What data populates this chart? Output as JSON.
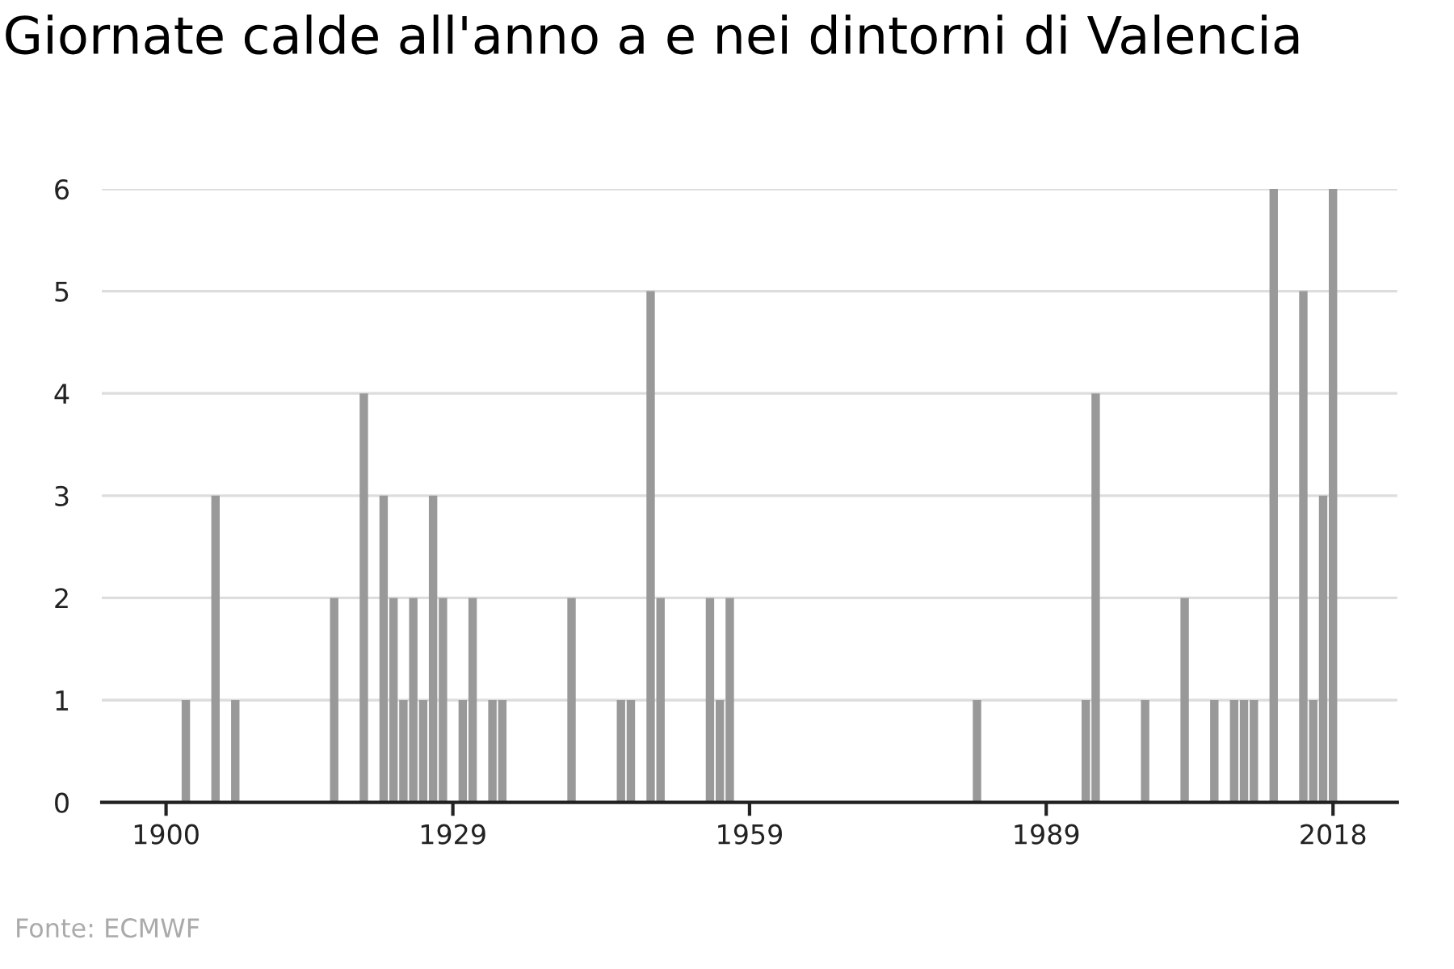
{
  "chart_data": {
    "type": "bar",
    "title": "Giornate calde all'anno a e nei dintorni di Valencia",
    "x": [
      1902,
      1905,
      1907,
      1917,
      1920,
      1922,
      1923,
      1924,
      1925,
      1926,
      1927,
      1928,
      1930,
      1931,
      1933,
      1934,
      1941,
      1946,
      1947,
      1949,
      1950,
      1955,
      1956,
      1957,
      1982,
      1993,
      1994,
      1999,
      2003,
      2006,
      2008,
      2009,
      2010,
      2012,
      2015,
      2016,
      2017,
      2018
    ],
    "values": [
      1,
      3,
      1,
      2,
      4,
      3,
      2,
      1,
      2,
      1,
      3,
      2,
      1,
      2,
      1,
      1,
      2,
      1,
      1,
      5,
      2,
      2,
      1,
      2,
      1,
      1,
      4,
      1,
      2,
      1,
      1,
      1,
      1,
      6,
      5,
      1,
      3,
      6
    ],
    "color": "#999999",
    "xlim": [
      1893.5,
      2024.5
    ],
    "xticks": [
      1900,
      1929,
      1959,
      1989,
      2018
    ],
    "ylim": [
      0,
      6
    ],
    "yticks": [
      0,
      1,
      2,
      3,
      4,
      5,
      6
    ],
    "grid": "y",
    "legend": false,
    "annotations": [
      "Fonte: ECMWF"
    ]
  }
}
